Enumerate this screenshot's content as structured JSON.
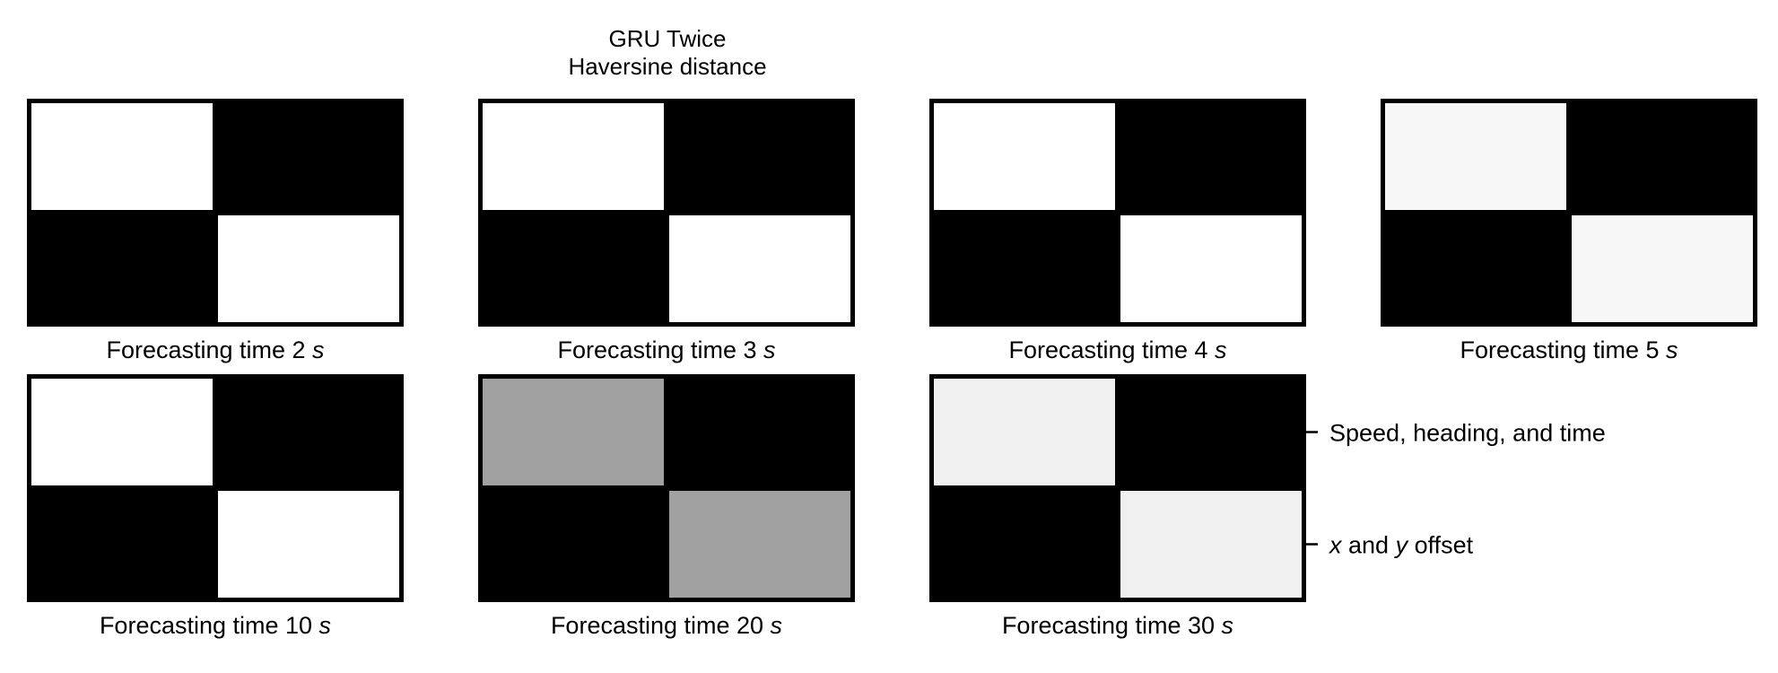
{
  "chart_data": {
    "type": "heatmap",
    "title": "GRU Twice",
    "subtitle": "Haversine distance",
    "row_labels": [
      "Speed, heading, and time",
      "x and y offset"
    ],
    "row_label_parts": [
      [
        {
          "t": "Speed, heading, and time",
          "i": false
        }
      ],
      [
        {
          "t": "x",
          "i": true
        },
        {
          "t": " and ",
          "i": false
        },
        {
          "t": "y",
          "i": true
        },
        {
          "t": " offset",
          "i": false
        }
      ]
    ],
    "panel_caption_prefix": "Forecasting time ",
    "unit": "s",
    "panels": [
      {
        "time": "2",
        "caption": "Forecasting time 2 s",
        "values": [
          [
            1.0,
            0.0
          ],
          [
            0.0,
            1.0
          ]
        ]
      },
      {
        "time": "3",
        "caption": "Forecasting time 3 s",
        "values": [
          [
            1.0,
            0.0
          ],
          [
            0.0,
            1.0
          ]
        ]
      },
      {
        "time": "4",
        "caption": "Forecasting time 4 s",
        "values": [
          [
            1.0,
            0.0
          ],
          [
            0.0,
            1.0
          ]
        ]
      },
      {
        "time": "5",
        "caption": "Forecasting time 5 s",
        "values": [
          [
            0.97,
            0.0
          ],
          [
            0.0,
            0.97
          ]
        ]
      },
      {
        "time": "10",
        "caption": "Forecasting time 10 s",
        "values": [
          [
            1.0,
            0.0
          ],
          [
            0.0,
            1.0
          ]
        ]
      },
      {
        "time": "20",
        "caption": "Forecasting time 20 s",
        "values": [
          [
            0.63,
            0.0
          ],
          [
            0.0,
            0.63
          ]
        ]
      },
      {
        "time": "30",
        "caption": "Forecasting time 30 s",
        "values": [
          [
            0.94,
            0.0
          ],
          [
            0.0,
            0.94
          ]
        ]
      }
    ],
    "colormap": "gray",
    "vlim": [
      0,
      1
    ],
    "grid": false,
    "legend": "none"
  }
}
